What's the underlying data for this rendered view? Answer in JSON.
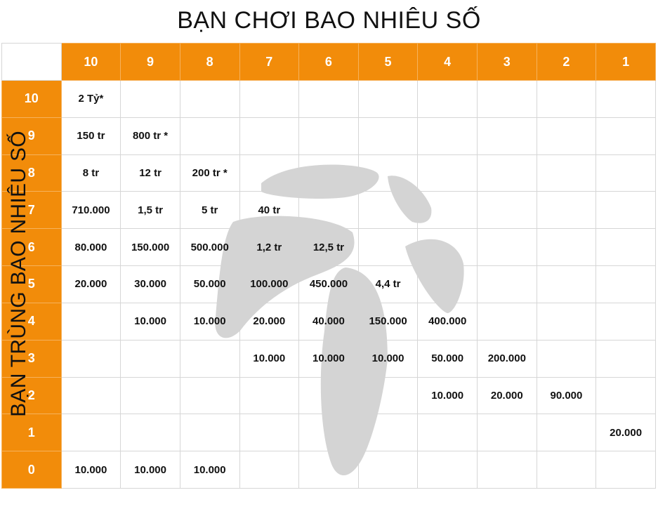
{
  "title": "BẠN CHƠI BAO NHIÊU SỐ",
  "side_title": "BẠN TRÙNG BAO NHIÊU SỐ",
  "colors": {
    "accent": "#f28c0a",
    "watermark": "#d4d4d4"
  },
  "columns": [
    "10",
    "9",
    "8",
    "7",
    "6",
    "5",
    "4",
    "3",
    "2",
    "1"
  ],
  "rows": [
    {
      "label": "10",
      "cells": [
        "2 Tỷ*",
        "",
        "",
        "",
        "",
        "",
        "",
        "",
        "",
        ""
      ]
    },
    {
      "label": "9",
      "cells": [
        "150 tr",
        "800 tr *",
        "",
        "",
        "",
        "",
        "",
        "",
        "",
        ""
      ]
    },
    {
      "label": "8",
      "cells": [
        "8 tr",
        "12 tr",
        "200 tr *",
        "",
        "",
        "",
        "",
        "",
        "",
        ""
      ]
    },
    {
      "label": "7",
      "cells": [
        "710.000",
        "1,5 tr",
        "5 tr",
        "40 tr",
        "",
        "",
        "",
        "",
        "",
        ""
      ]
    },
    {
      "label": "6",
      "cells": [
        "80.000",
        "150.000",
        "500.000",
        "1,2 tr",
        "12,5 tr",
        "",
        "",
        "",
        "",
        ""
      ]
    },
    {
      "label": "5",
      "cells": [
        "20.000",
        "30.000",
        "50.000",
        "100.000",
        "450.000",
        "4,4 tr",
        "",
        "",
        "",
        ""
      ]
    },
    {
      "label": "4",
      "cells": [
        "",
        "10.000",
        "10.000",
        "20.000",
        "40.000",
        "150.000",
        "400.000",
        "",
        "",
        ""
      ]
    },
    {
      "label": "3",
      "cells": [
        "",
        "",
        "",
        "10.000",
        "10.000",
        "10.000",
        "50.000",
        "200.000",
        "",
        ""
      ]
    },
    {
      "label": "2",
      "cells": [
        "",
        "",
        "",
        "",
        "",
        "",
        "10.000",
        "20.000",
        "90.000",
        ""
      ]
    },
    {
      "label": "1",
      "cells": [
        "",
        "",
        "",
        "",
        "",
        "",
        "",
        "",
        "",
        "20.000"
      ]
    },
    {
      "label": "0",
      "cells": [
        "10.000",
        "10.000",
        "10.000",
        "",
        "",
        "",
        "",
        "",
        "",
        ""
      ]
    }
  ]
}
